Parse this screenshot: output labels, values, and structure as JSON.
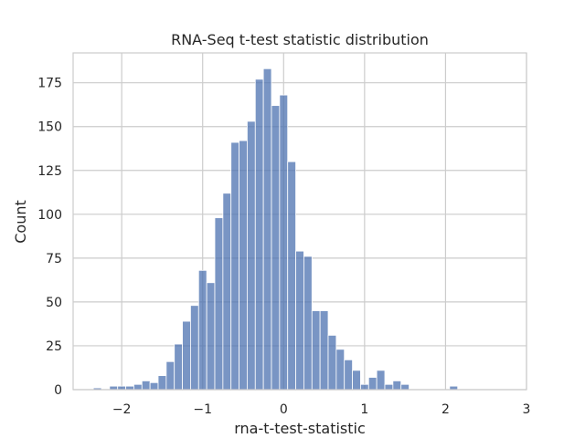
{
  "chart_data": {
    "type": "bar",
    "title": "RNA-Seq t-test statistic distribution",
    "xlabel": "rna-t-test-statistic",
    "ylabel": "Count",
    "xlim": [
      -2.6,
      3.0
    ],
    "ylim": [
      0,
      192
    ],
    "x_ticks": [
      -2,
      -1,
      0,
      1,
      2,
      3
    ],
    "x_tick_labels": [
      "−2",
      "−1",
      "0",
      "1",
      "2",
      "3"
    ],
    "y_ticks": [
      0,
      25,
      50,
      75,
      100,
      125,
      150,
      175
    ],
    "y_tick_labels": [
      "0",
      "25",
      "50",
      "75",
      "100",
      "125",
      "150",
      "175"
    ],
    "grid": true,
    "bar_color": "#4c72b0",
    "bin_start": -2.35,
    "bin_width": 0.1,
    "values": [
      1,
      0,
      2,
      2,
      2,
      3,
      5,
      4,
      8,
      16,
      26,
      39,
      48,
      68,
      61,
      98,
      112,
      141,
      142,
      153,
      177,
      183,
      162,
      168,
      130,
      79,
      76,
      45,
      45,
      31,
      23,
      17,
      11,
      3,
      7,
      11,
      3,
      5,
      3,
      0,
      0,
      0,
      0,
      0,
      2
    ]
  }
}
